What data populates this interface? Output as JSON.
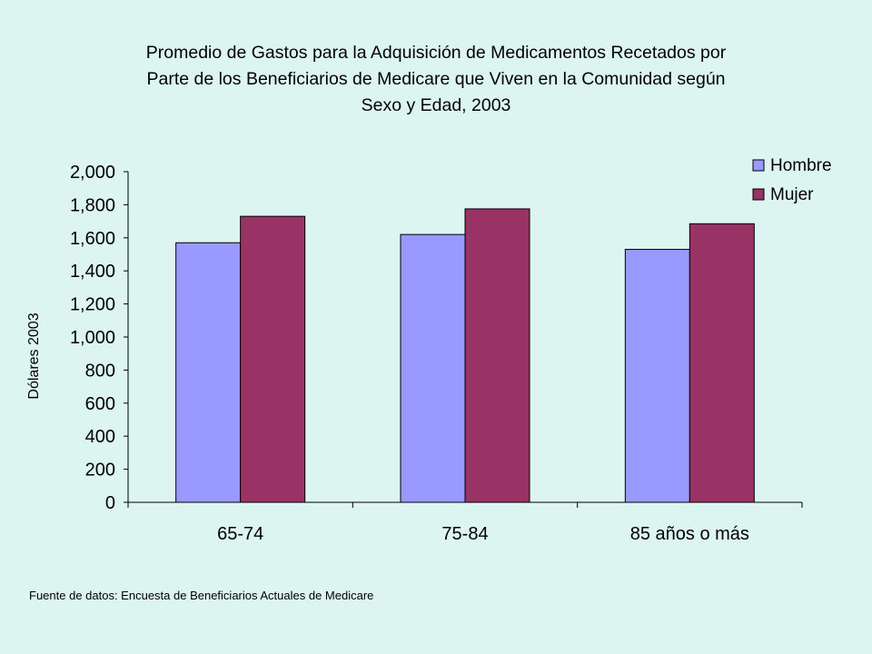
{
  "title_lines": [
    "Promedio de Gastos para la Adquisición de Medicamentos Recetados por",
    "Parte de los Beneficiarios de Medicare que Viven en la Comunidad según",
    "Sexo y Edad, 2003"
  ],
  "source_note": "Fuente de datos:  Encuesta de Beneficiarios Actuales de Medicare",
  "colors": {
    "hombre": "#9999ff",
    "mujer": "#993366",
    "background": "#ddf5f0"
  },
  "chart_data": {
    "type": "bar",
    "title": "Promedio de Gastos para la Adquisición de Medicamentos Recetados por Parte de los Beneficiarios de Medicare que Viven en la Comunidad según Sexo y Edad, 2003",
    "xlabel": "",
    "ylabel": "Dólares 2003",
    "ylim": [
      0,
      2000
    ],
    "yticks": [
      0,
      200,
      400,
      600,
      800,
      1000,
      1200,
      1400,
      1600,
      1800,
      2000
    ],
    "ytick_labels": [
      "0",
      "200",
      "400",
      "600",
      "800",
      "1,000",
      "1,200",
      "1,400",
      "1,600",
      "1,800",
      "2,000"
    ],
    "categories": [
      "65-74",
      "75-84",
      "85 años o más"
    ],
    "series": [
      {
        "name": "Hombre",
        "values": [
          1570,
          1620,
          1530
        ]
      },
      {
        "name": "Mujer",
        "values": [
          1730,
          1775,
          1685
        ]
      }
    ],
    "grid": false,
    "legend_position": "top-right"
  }
}
